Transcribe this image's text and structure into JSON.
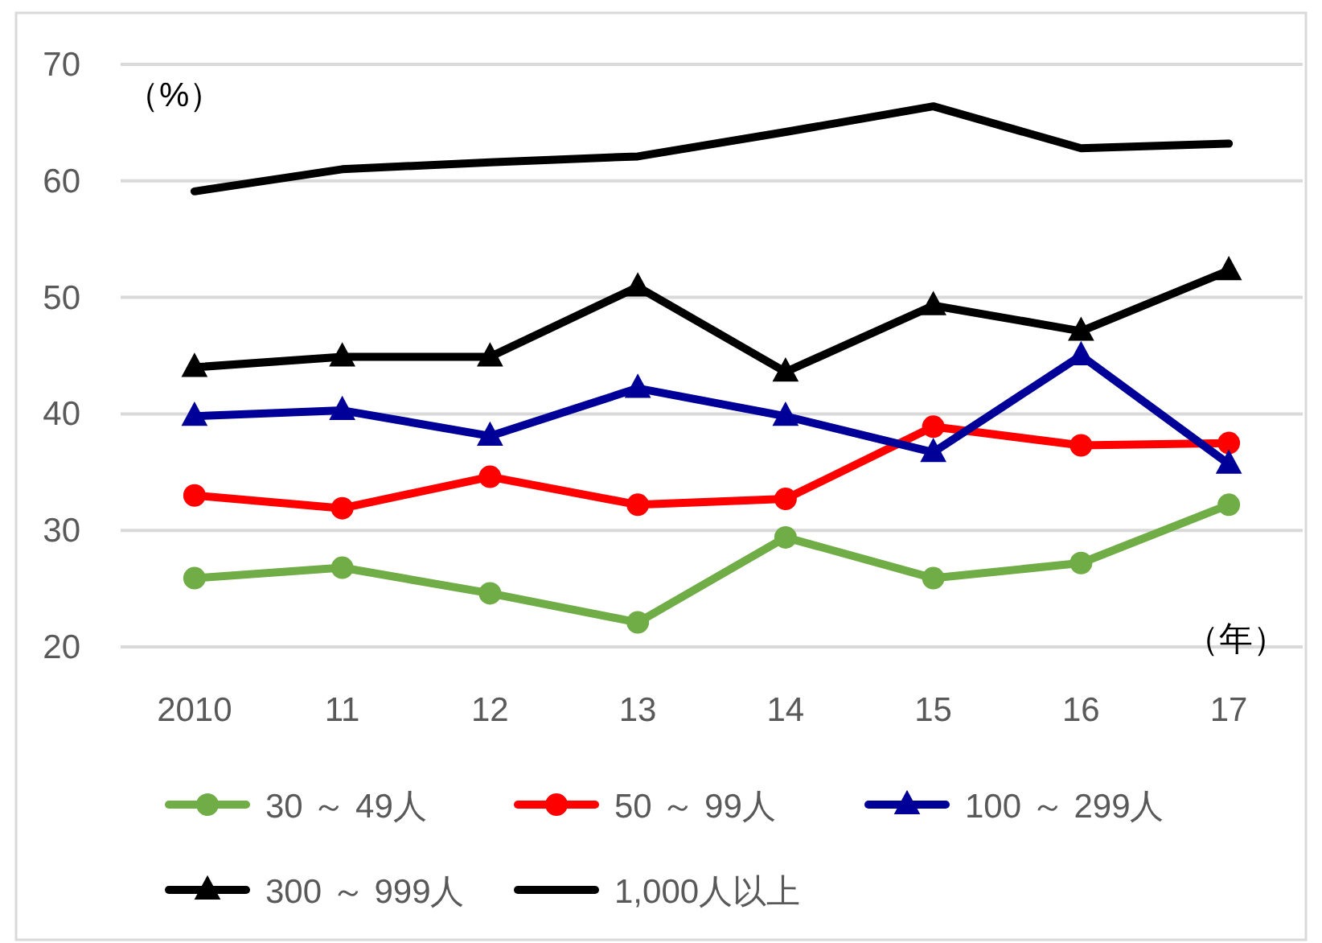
{
  "chart_data": {
    "type": "line",
    "xlabel": "（年）",
    "ylabel": "（%）",
    "categories": [
      "2010",
      "11",
      "12",
      "13",
      "14",
      "15",
      "16",
      "17"
    ],
    "ylim": [
      20,
      70
    ],
    "yticks": [
      20,
      30,
      40,
      50,
      60,
      70
    ],
    "grid": "y",
    "legend": "bottom",
    "series": [
      {
        "name": "30 ～ 49人",
        "color": "#70ad47",
        "marker": "circle",
        "values": [
          25.9,
          26.8,
          24.6,
          22.1,
          29.4,
          25.9,
          27.2,
          32.2
        ]
      },
      {
        "name": "50 ～ 99人",
        "color": "#ff0000",
        "marker": "circle",
        "values": [
          33.0,
          31.9,
          34.6,
          32.2,
          32.7,
          38.9,
          37.3,
          37.5
        ]
      },
      {
        "name": "100 ～ 299人",
        "color": "#000099",
        "marker": "triangle",
        "values": [
          39.8,
          40.3,
          38.1,
          42.2,
          39.8,
          36.7,
          45.0,
          35.7
        ]
      },
      {
        "name": "300 ～ 999人",
        "color": "#000000",
        "marker": "triangle",
        "values": [
          44.0,
          44.9,
          44.9,
          50.9,
          43.6,
          49.3,
          47.1,
          52.3
        ]
      },
      {
        "name": "1,000人以上",
        "color": "#000000",
        "marker": "none",
        "values": [
          59.1,
          61.0,
          61.6,
          62.1,
          64.2,
          66.4,
          62.8,
          63.2
        ]
      }
    ]
  }
}
